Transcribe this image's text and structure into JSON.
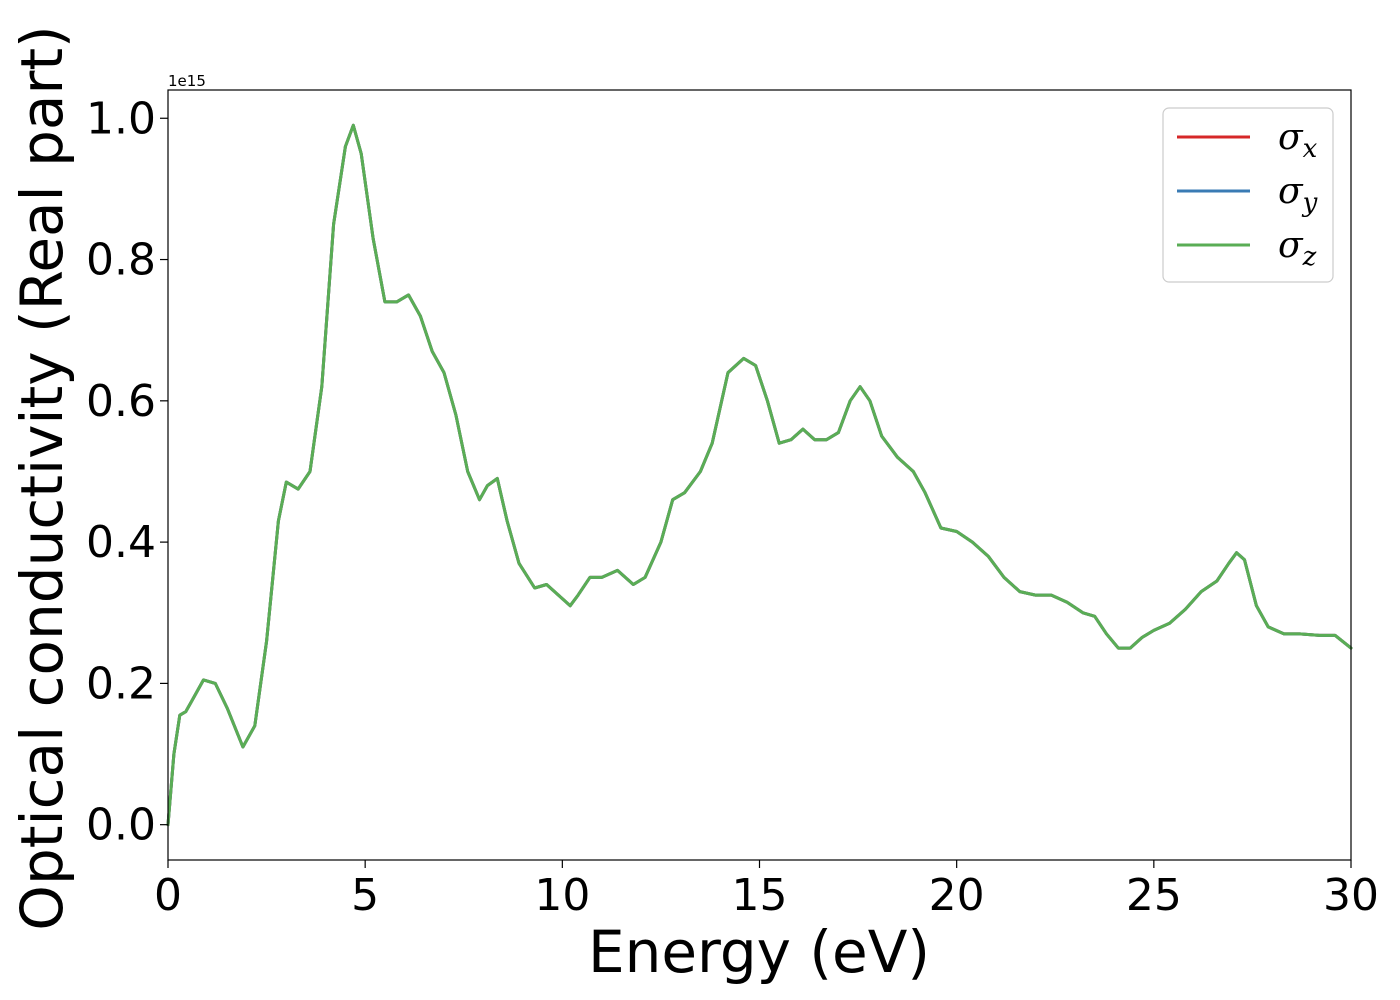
{
  "chart_data": {
    "type": "line",
    "xlabel": "Energy (eV)",
    "ylabel": "Optical conductivity (Real part)",
    "y_offset_label": "1e15",
    "xlim": [
      0,
      30
    ],
    "ylim": [
      -0.05,
      1.04
    ],
    "x_ticks": [
      0,
      5,
      10,
      15,
      20,
      25,
      30
    ],
    "x_tick_labels": [
      "0",
      "5",
      "10",
      "15",
      "20",
      "25",
      "30"
    ],
    "y_ticks": [
      0.0,
      0.2,
      0.4,
      0.6,
      0.8,
      1.0
    ],
    "y_tick_labels": [
      "0.0",
      "0.2",
      "0.4",
      "0.6",
      "0.8",
      "1.0"
    ],
    "grid": false,
    "legend_position": "top-right",
    "series": [
      {
        "name": "σ",
        "subscript": "x",
        "color": "#d62728"
      },
      {
        "name": "σ",
        "subscript": "y",
        "color": "#3a7bb4"
      },
      {
        "name": "σ",
        "subscript": "z",
        "color": "#5aad55"
      }
    ],
    "x": [
      0,
      0.15,
      0.3,
      0.45,
      0.6,
      0.9,
      1.2,
      1.5,
      1.9,
      2.2,
      2.5,
      2.8,
      3.0,
      3.3,
      3.6,
      3.9,
      4.2,
      4.5,
      4.7,
      4.9,
      5.2,
      5.5,
      5.8,
      6.1,
      6.4,
      6.7,
      7.0,
      7.3,
      7.6,
      7.9,
      8.1,
      8.35,
      8.6,
      8.9,
      9.3,
      9.6,
      10.0,
      10.2,
      10.4,
      10.7,
      11.0,
      11.4,
      11.8,
      12.1,
      12.5,
      12.8,
      13.1,
      13.5,
      13.8,
      14.2,
      14.6,
      14.9,
      15.2,
      15.5,
      15.8,
      16.1,
      16.4,
      16.7,
      17.0,
      17.3,
      17.55,
      17.8,
      18.1,
      18.5,
      18.9,
      19.2,
      19.6,
      20.0,
      20.4,
      20.8,
      21.2,
      21.6,
      22.0,
      22.4,
      22.8,
      23.2,
      23.5,
      23.8,
      24.1,
      24.4,
      24.7,
      25.0,
      25.4,
      25.8,
      26.2,
      26.6,
      26.9,
      27.1,
      27.3,
      27.6,
      27.9,
      28.3,
      28.7,
      29.2,
      29.6,
      30.0
    ],
    "values_x": [
      0.0,
      0.1,
      0.155,
      0.16,
      0.175,
      0.205,
      0.2,
      0.165,
      0.11,
      0.14,
      0.26,
      0.43,
      0.485,
      0.475,
      0.5,
      0.62,
      0.85,
      0.96,
      0.99,
      0.95,
      0.83,
      0.74,
      0.74,
      0.75,
      0.72,
      0.67,
      0.64,
      0.58,
      0.5,
      0.46,
      0.48,
      0.49,
      0.43,
      0.37,
      0.335,
      0.34,
      0.32,
      0.31,
      0.325,
      0.35,
      0.35,
      0.36,
      0.34,
      0.35,
      0.4,
      0.46,
      0.47,
      0.5,
      0.54,
      0.64,
      0.66,
      0.65,
      0.6,
      0.54,
      0.545,
      0.56,
      0.545,
      0.545,
      0.555,
      0.6,
      0.62,
      0.6,
      0.55,
      0.52,
      0.5,
      0.47,
      0.42,
      0.415,
      0.4,
      0.38,
      0.35,
      0.33,
      0.325,
      0.325,
      0.315,
      0.3,
      0.295,
      0.27,
      0.25,
      0.25,
      0.265,
      0.275,
      0.285,
      0.305,
      0.33,
      0.345,
      0.37,
      0.385,
      0.375,
      0.31,
      0.28,
      0.27,
      0.27,
      0.268,
      0.268,
      0.25
    ],
    "values_y": [
      0.0,
      0.1,
      0.155,
      0.16,
      0.175,
      0.205,
      0.2,
      0.165,
      0.11,
      0.14,
      0.26,
      0.43,
      0.485,
      0.475,
      0.5,
      0.62,
      0.85,
      0.96,
      0.99,
      0.95,
      0.83,
      0.74,
      0.74,
      0.75,
      0.72,
      0.67,
      0.64,
      0.58,
      0.5,
      0.46,
      0.48,
      0.49,
      0.43,
      0.37,
      0.335,
      0.34,
      0.32,
      0.31,
      0.325,
      0.35,
      0.35,
      0.36,
      0.34,
      0.35,
      0.4,
      0.46,
      0.47,
      0.5,
      0.54,
      0.64,
      0.66,
      0.65,
      0.6,
      0.54,
      0.545,
      0.56,
      0.545,
      0.545,
      0.555,
      0.6,
      0.62,
      0.6,
      0.55,
      0.52,
      0.5,
      0.47,
      0.42,
      0.415,
      0.4,
      0.38,
      0.35,
      0.33,
      0.325,
      0.325,
      0.315,
      0.3,
      0.295,
      0.27,
      0.25,
      0.25,
      0.265,
      0.275,
      0.285,
      0.305,
      0.33,
      0.345,
      0.37,
      0.385,
      0.375,
      0.31,
      0.28,
      0.27,
      0.27,
      0.268,
      0.268,
      0.25
    ],
    "values_z": [
      0.0,
      0.1,
      0.155,
      0.16,
      0.175,
      0.205,
      0.2,
      0.165,
      0.11,
      0.14,
      0.26,
      0.43,
      0.485,
      0.475,
      0.5,
      0.62,
      0.85,
      0.96,
      0.99,
      0.95,
      0.83,
      0.74,
      0.74,
      0.75,
      0.72,
      0.67,
      0.64,
      0.58,
      0.5,
      0.46,
      0.48,
      0.49,
      0.43,
      0.37,
      0.335,
      0.34,
      0.32,
      0.31,
      0.325,
      0.35,
      0.35,
      0.36,
      0.34,
      0.35,
      0.4,
      0.46,
      0.47,
      0.5,
      0.54,
      0.64,
      0.66,
      0.65,
      0.6,
      0.54,
      0.545,
      0.56,
      0.545,
      0.545,
      0.555,
      0.6,
      0.62,
      0.6,
      0.55,
      0.52,
      0.5,
      0.47,
      0.42,
      0.415,
      0.4,
      0.38,
      0.35,
      0.33,
      0.325,
      0.325,
      0.315,
      0.3,
      0.295,
      0.27,
      0.25,
      0.25,
      0.265,
      0.275,
      0.285,
      0.305,
      0.33,
      0.345,
      0.37,
      0.385,
      0.375,
      0.31,
      0.28,
      0.27,
      0.27,
      0.268,
      0.268,
      0.25
    ]
  }
}
